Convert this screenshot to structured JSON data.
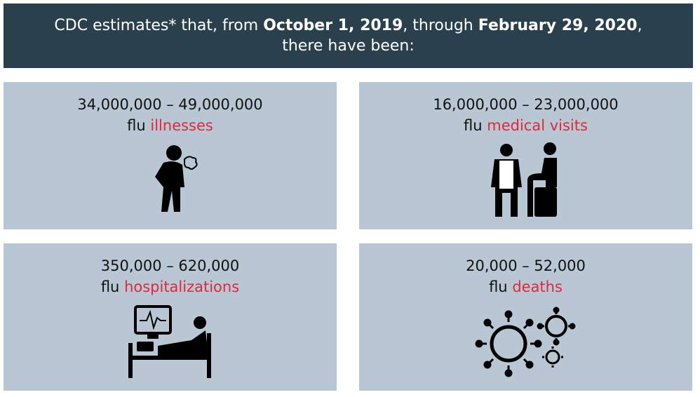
{
  "header": {
    "parts": [
      "CDC estimates* that, from ",
      "October 1, 2019",
      ", through ",
      "February 29, 2020",
      ", there have been:"
    ]
  },
  "cards": [
    {
      "range": "34,000,000 – 49,000,000",
      "prefix": "flu",
      "highlight": "illnesses"
    },
    {
      "range": "16,000,000 – 23,000,000",
      "prefix": "flu",
      "highlight": "medical visits"
    },
    {
      "range": "350,000 – 620,000",
      "prefix": "flu",
      "highlight": "hospitalizations"
    },
    {
      "range": "20,000 – 52,000",
      "prefix": "flu",
      "highlight": "deaths"
    }
  ]
}
